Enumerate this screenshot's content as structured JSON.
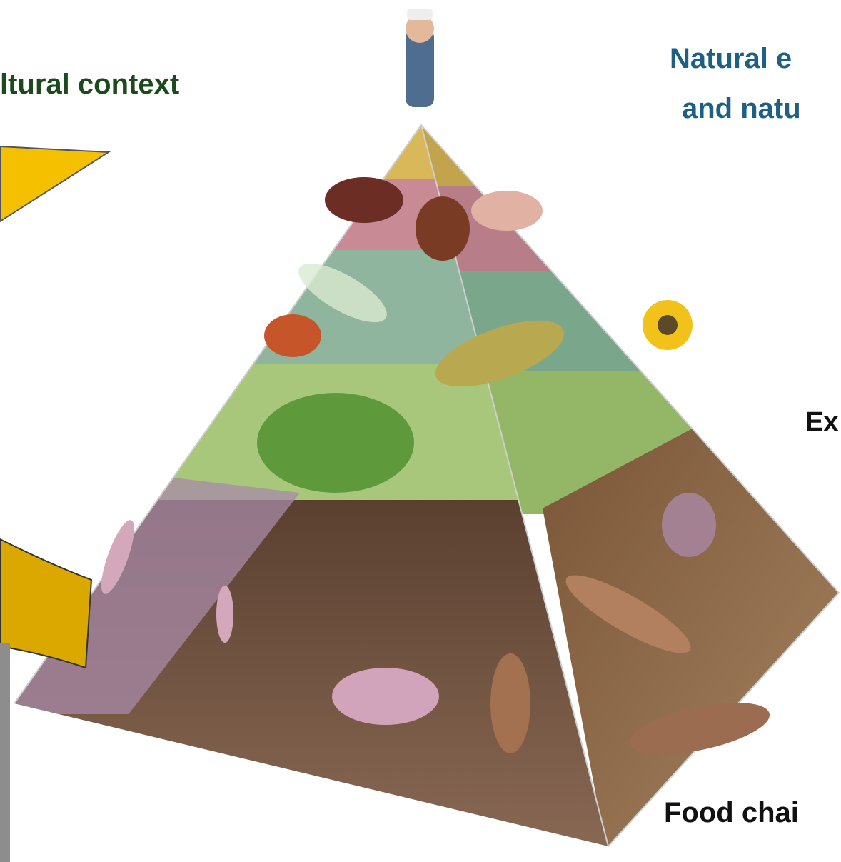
{
  "heading_left": "ltural context",
  "heading_right": {
    "line1": "Natural e",
    "line2": "and natu"
  },
  "label_middle_right": "Ex",
  "label_bottom_right": "Food chai"
}
